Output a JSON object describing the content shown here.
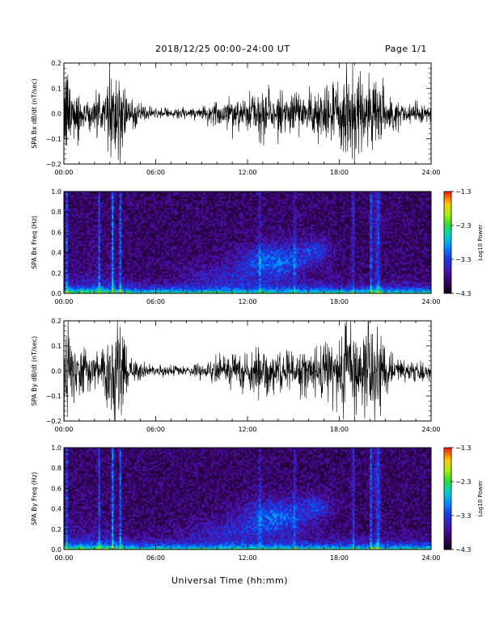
{
  "header": {
    "title": "2018/12/25   00:00–24:00  UT",
    "page": "Page 1/1"
  },
  "x_axis_title": "Universal Time (hh:mm)",
  "chart_data": [
    {
      "type": "line",
      "title": "",
      "xlabel": "",
      "ylabel": "SPA Bx dB/dt (nT/sec)",
      "xlim": [
        0,
        24
      ],
      "ylim": [
        -0.2,
        0.2
      ],
      "x_ticks": [
        "00:00",
        "06:00",
        "12:00",
        "18:00",
        "24:00"
      ],
      "y_ticks": [
        "0.2",
        "0.1",
        "0.0",
        "−0.1",
        "−0.2"
      ],
      "envelope": {
        "hours": [
          0,
          0.25,
          0.5,
          1,
          1.5,
          2,
          2.5,
          2.8,
          3.0,
          3.2,
          3.4,
          3.6,
          3.8,
          4.0,
          4.2,
          4.5,
          5,
          5.5,
          6,
          7,
          8,
          9,
          10,
          10.5,
          11,
          11.5,
          12,
          12.5,
          13,
          13.5,
          14,
          14.5,
          15,
          15.5,
          16,
          16.5,
          17,
          17.5,
          18,
          18.5,
          19,
          19.5,
          20,
          20.3,
          20.6,
          21,
          21.5,
          22,
          22.5,
          23,
          23.5,
          24
        ],
        "amplitude": [
          0.2,
          0.2,
          0.13,
          0.09,
          0.08,
          0.07,
          0.08,
          0.12,
          0.2,
          0.2,
          0.2,
          0.2,
          0.15,
          0.12,
          0.08,
          0.05,
          0.035,
          0.025,
          0.02,
          0.02,
          0.025,
          0.03,
          0.05,
          0.06,
          0.08,
          0.07,
          0.06,
          0.08,
          0.1,
          0.08,
          0.07,
          0.065,
          0.065,
          0.07,
          0.08,
          0.09,
          0.1,
          0.11,
          0.13,
          0.2,
          0.2,
          0.16,
          0.2,
          0.2,
          0.15,
          0.08,
          0.06,
          0.05,
          0.04,
          0.04,
          0.035,
          0.03
        ]
      }
    },
    {
      "type": "heatmap",
      "title": "",
      "xlabel": "",
      "ylabel": "SPA Bx Freq (Hz)",
      "xlim": [
        0,
        24
      ],
      "ylim": [
        0,
        1
      ],
      "x_ticks": [
        "00:00",
        "06:00",
        "12:00",
        "18:00",
        "24:00"
      ],
      "y_ticks": [
        "1.0",
        "0.8",
        "0.6",
        "0.4",
        "0.2",
        "0.0"
      ],
      "colorbar": {
        "label": "Log10 Power",
        "range": [
          -4.3,
          -1.3
        ],
        "ticks": [
          "−1.3",
          "−2.3",
          "−3.3",
          "−4.3"
        ]
      }
    },
    {
      "type": "line",
      "title": "",
      "xlabel": "",
      "ylabel": "SPA By dB/dt (nT/sec)",
      "xlim": [
        0,
        24
      ],
      "ylim": [
        -0.2,
        0.2
      ],
      "x_ticks": [
        "00:00",
        "06:00",
        "12:00",
        "18:00",
        "24:00"
      ],
      "y_ticks": [
        "0.2",
        "0.1",
        "0.0",
        "−0.1",
        "−0.2"
      ],
      "envelope": {
        "hours": [
          0,
          0.25,
          0.5,
          1,
          1.5,
          2,
          2.5,
          2.8,
          3.0,
          3.2,
          3.4,
          3.6,
          3.8,
          4.0,
          4.2,
          4.5,
          5,
          5.5,
          6,
          7,
          8,
          9,
          10,
          10.5,
          11,
          11.5,
          12,
          12.5,
          13,
          13.5,
          14,
          14.5,
          15,
          15.5,
          16,
          16.5,
          17,
          17.5,
          18,
          18.5,
          19,
          19.5,
          20,
          20.3,
          20.6,
          21,
          21.5,
          22,
          22.5,
          23,
          23.5,
          24
        ],
        "amplitude": [
          0.18,
          0.2,
          0.12,
          0.08,
          0.07,
          0.07,
          0.09,
          0.13,
          0.2,
          0.2,
          0.2,
          0.2,
          0.17,
          0.12,
          0.07,
          0.05,
          0.035,
          0.025,
          0.02,
          0.02,
          0.025,
          0.03,
          0.05,
          0.06,
          0.08,
          0.07,
          0.06,
          0.08,
          0.1,
          0.08,
          0.07,
          0.065,
          0.065,
          0.08,
          0.09,
          0.08,
          0.1,
          0.11,
          0.14,
          0.2,
          0.2,
          0.16,
          0.2,
          0.2,
          0.16,
          0.08,
          0.06,
          0.05,
          0.04,
          0.04,
          0.035,
          0.03
        ]
      }
    },
    {
      "type": "heatmap",
      "title": "",
      "xlabel": "",
      "ylabel": "SPA By Freq (Hz)",
      "xlim": [
        0,
        24
      ],
      "ylim": [
        0,
        1
      ],
      "x_ticks": [
        "00:00",
        "06:00",
        "12:00",
        "18:00",
        "24:00"
      ],
      "y_ticks": [
        "1.0",
        "0.8",
        "0.6",
        "0.4",
        "0.2",
        "0.0"
      ],
      "colorbar": {
        "label": "Log10 Power",
        "range": [
          -4.3,
          -1.3
        ],
        "ticks": [
          "−1.3",
          "−2.3",
          "−3.3",
          "−4.3"
        ]
      }
    }
  ]
}
